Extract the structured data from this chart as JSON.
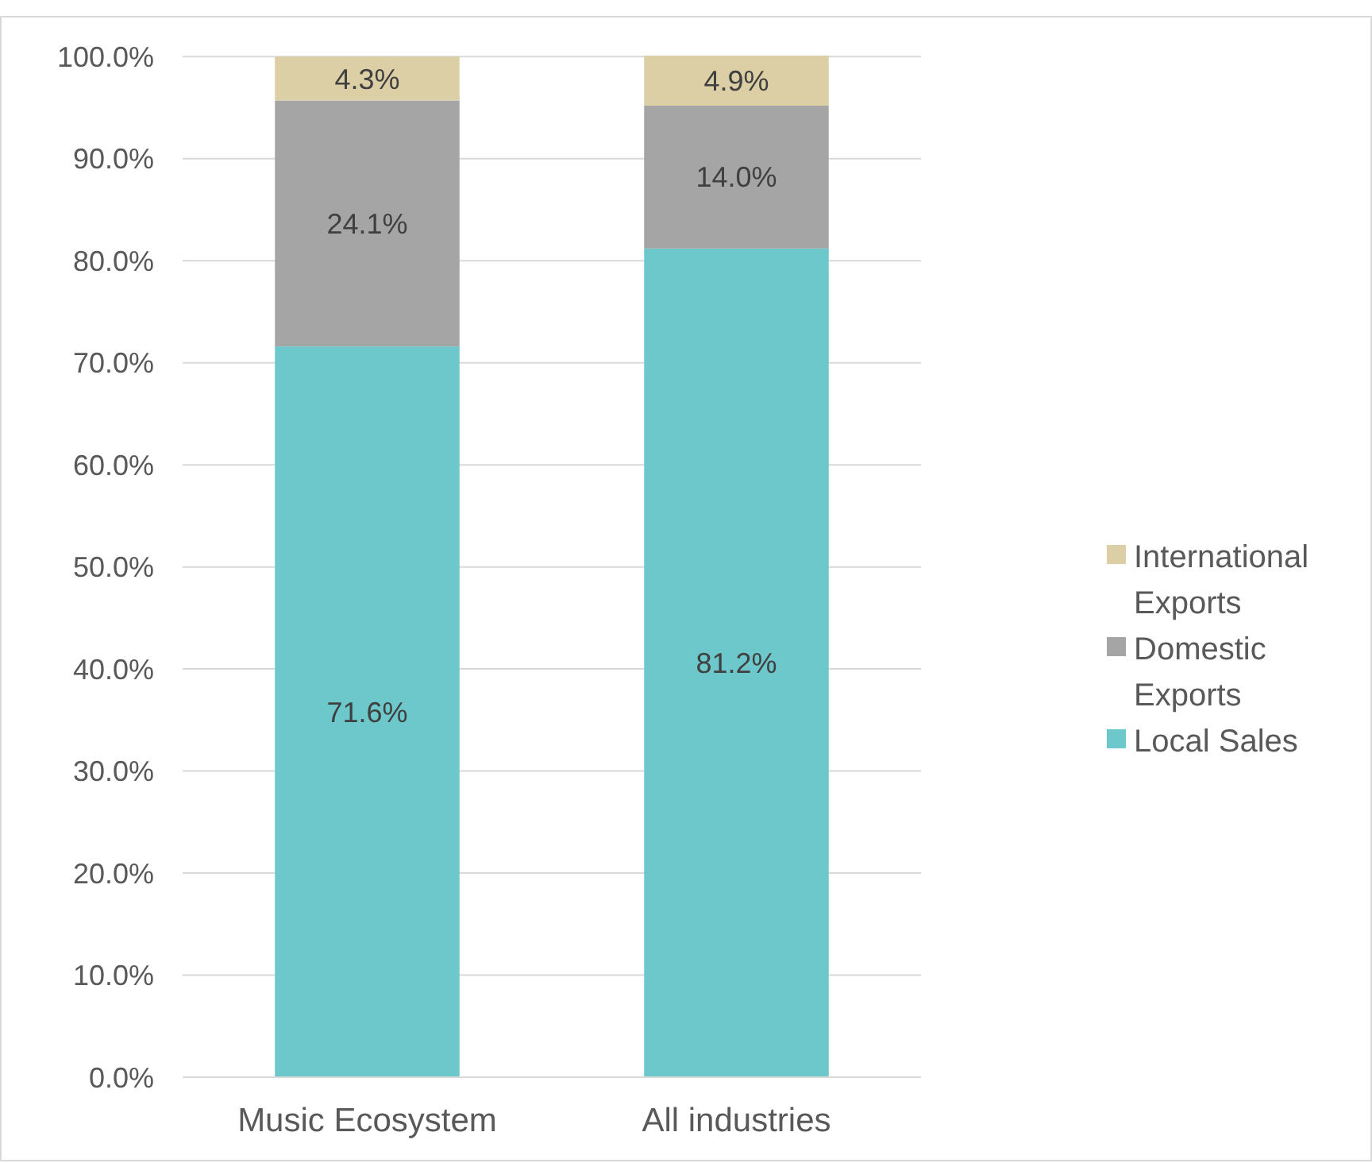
{
  "chart_data": {
    "type": "bar",
    "stacked": true,
    "categories": [
      "Music Ecosystem",
      "All industries"
    ],
    "series": [
      {
        "name": "Local Sales",
        "color": "#6dc8cc",
        "values": [
          71.6,
          81.2
        ],
        "value_labels": [
          "71.6%",
          "81.2%"
        ]
      },
      {
        "name": "Domestic Exports",
        "color": "#a5a5a5",
        "values": [
          24.1,
          14.0
        ],
        "value_labels": [
          "24.1%",
          "14.0%"
        ]
      },
      {
        "name": "International Exports",
        "color": "#dccfa6",
        "values": [
          4.3,
          4.9
        ],
        "value_labels": [
          "4.3%",
          "4.9%"
        ]
      }
    ],
    "ylim": [
      0,
      100.1
    ],
    "yticks": [
      {
        "value": 0,
        "label": "0.0%"
      },
      {
        "value": 10,
        "label": "10.0%"
      },
      {
        "value": 20,
        "label": "20.0%"
      },
      {
        "value": 30,
        "label": "30.0%"
      },
      {
        "value": 40,
        "label": "40.0%"
      },
      {
        "value": 50,
        "label": "50.0%"
      },
      {
        "value": 60,
        "label": "60.0%"
      },
      {
        "value": 70,
        "label": "70.0%"
      },
      {
        "value": 80,
        "label": "80.0%"
      },
      {
        "value": 90,
        "label": "90.0%"
      },
      {
        "value": 100,
        "label": "100.0%"
      }
    ],
    "grid": "y",
    "legend": "right"
  }
}
